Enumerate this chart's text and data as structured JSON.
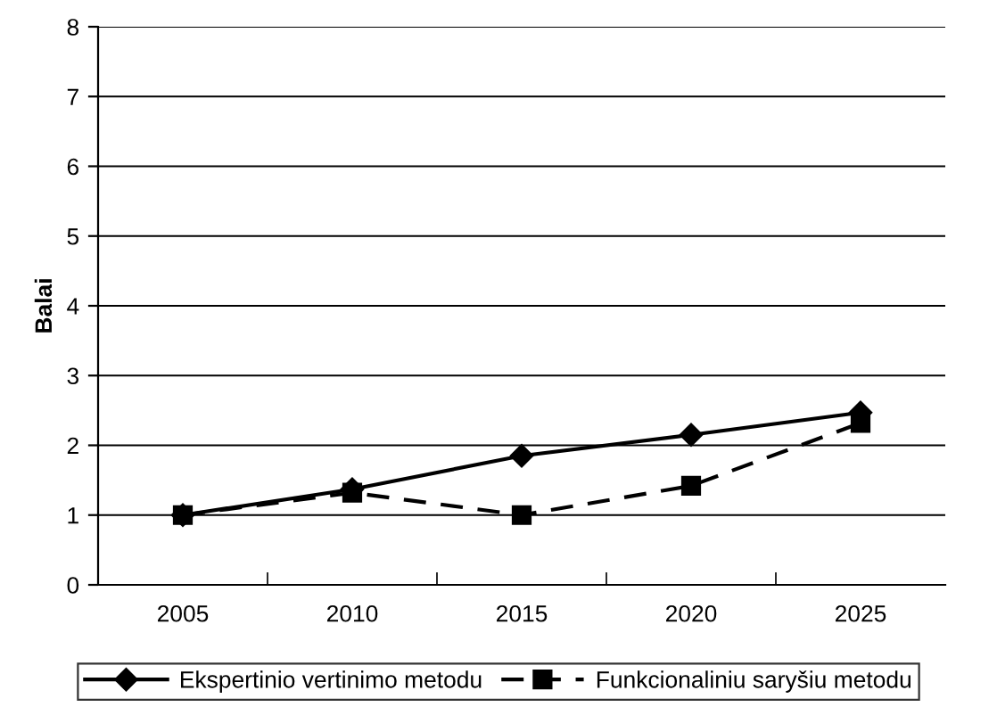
{
  "chart_data": {
    "type": "line",
    "ylabel": "Balai",
    "categories": [
      "2005",
      "2010",
      "2015",
      "2020",
      "2025"
    ],
    "series": [
      {
        "name": "Ekspertinio vertinimo metodu",
        "color": "#000000",
        "values": [
          1.0,
          1.37,
          1.85,
          2.15,
          2.47
        ],
        "marker": "diamond",
        "line_style": "solid"
      },
      {
        "name": "Funkcionaliniu saryšiu metodu",
        "color": "#000000",
        "values": [
          1.0,
          1.32,
          1.0,
          1.42,
          2.32
        ],
        "marker": "square",
        "line_style": "dashed"
      }
    ],
    "ylim": [
      0,
      8
    ],
    "yticks": [
      0,
      1,
      2,
      3,
      4,
      5,
      6,
      7,
      8
    ],
    "grid": "y",
    "legend": "bottom"
  }
}
